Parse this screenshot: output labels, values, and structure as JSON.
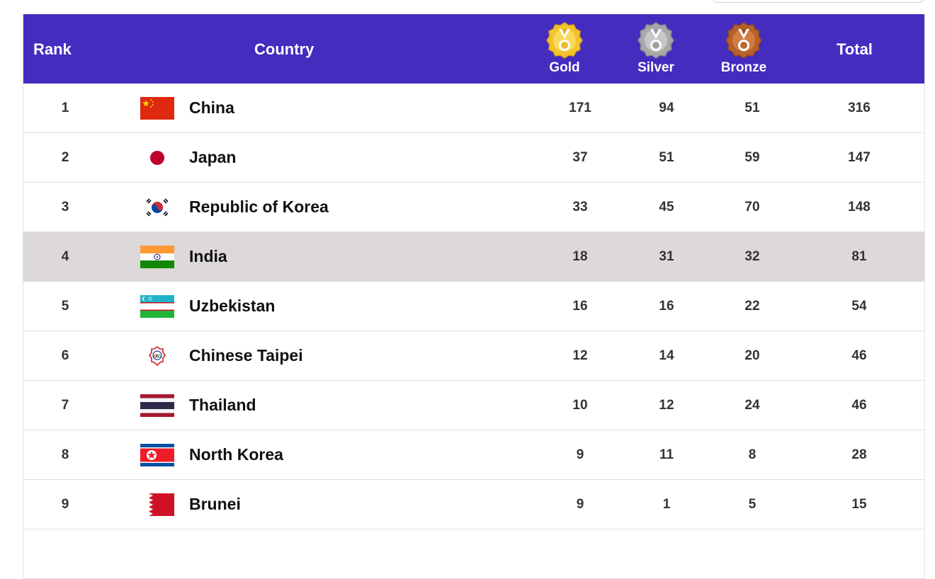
{
  "header": {
    "rank": "Rank",
    "country": "Country",
    "gold": "Gold",
    "silver": "Silver",
    "bronze": "Bronze",
    "total": "Total"
  },
  "colors": {
    "header_bg": "#452cbf",
    "highlight_row": "#dcd9d8",
    "gold": "#f2c42a",
    "silver": "#a8a8a8",
    "bronze": "#b5622a"
  },
  "rows": [
    {
      "rank": "1",
      "country": "China",
      "flag": "china-flag",
      "gold": "171",
      "silver": "94",
      "bronze": "51",
      "total": "316"
    },
    {
      "rank": "2",
      "country": "Japan",
      "flag": "japan-flag",
      "gold": "37",
      "silver": "51",
      "bronze": "59",
      "total": "147"
    },
    {
      "rank": "3",
      "country": "Republic of Korea",
      "flag": "korea-flag",
      "gold": "33",
      "silver": "45",
      "bronze": "70",
      "total": "148"
    },
    {
      "rank": "4",
      "country": "India",
      "flag": "india-flag",
      "gold": "18",
      "silver": "31",
      "bronze": "32",
      "total": "81",
      "highlighted": true
    },
    {
      "rank": "5",
      "country": "Uzbekistan",
      "flag": "uzbekistan-flag",
      "gold": "16",
      "silver": "16",
      "bronze": "22",
      "total": "54"
    },
    {
      "rank": "6",
      "country": "Chinese Taipei",
      "flag": "chinese-taipei-flag",
      "gold": "12",
      "silver": "14",
      "bronze": "20",
      "total": "46"
    },
    {
      "rank": "7",
      "country": "Thailand",
      "flag": "thailand-flag",
      "gold": "10",
      "silver": "12",
      "bronze": "24",
      "total": "46"
    },
    {
      "rank": "8",
      "country": "North Korea",
      "flag": "north-korea-flag",
      "gold": "9",
      "silver": "11",
      "bronze": "8",
      "total": "28"
    },
    {
      "rank": "9",
      "country": "Brunei",
      "flag": "brunei-flag",
      "gold": "9",
      "silver": "1",
      "bronze": "5",
      "total": "15"
    }
  ]
}
